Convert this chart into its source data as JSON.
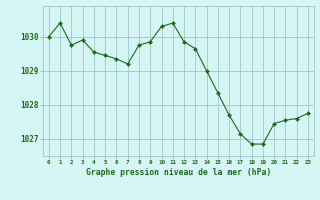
{
  "x": [
    0,
    1,
    2,
    3,
    4,
    5,
    6,
    7,
    8,
    9,
    10,
    11,
    12,
    13,
    14,
    15,
    16,
    17,
    18,
    19,
    20,
    21,
    22,
    23
  ],
  "y": [
    1030.0,
    1030.4,
    1029.75,
    1029.9,
    1029.55,
    1029.45,
    1029.35,
    1029.2,
    1029.75,
    1029.85,
    1030.3,
    1030.4,
    1029.85,
    1029.65,
    1029.0,
    1028.35,
    1027.7,
    1027.15,
    1026.85,
    1026.85,
    1027.45,
    1027.55,
    1027.6,
    1027.75
  ],
  "line_color": "#1a6b1a",
  "marker_color": "#1a6b1a",
  "bg_color": "#d6f5f5",
  "grid_color": "#a0c8c8",
  "axis_label_color": "#1a6b1a",
  "tick_label_color": "#1a6b1a",
  "xlabel": "Graphe pression niveau de la mer (hPa)",
  "ylim": [
    1026.5,
    1030.9
  ],
  "yticks": [
    1027,
    1028,
    1029,
    1030
  ],
  "xticks": [
    0,
    1,
    2,
    3,
    4,
    5,
    6,
    7,
    8,
    9,
    10,
    11,
    12,
    13,
    14,
    15,
    16,
    17,
    18,
    19,
    20,
    21,
    22,
    23
  ],
  "figsize": [
    3.2,
    2.0
  ],
  "dpi": 100
}
